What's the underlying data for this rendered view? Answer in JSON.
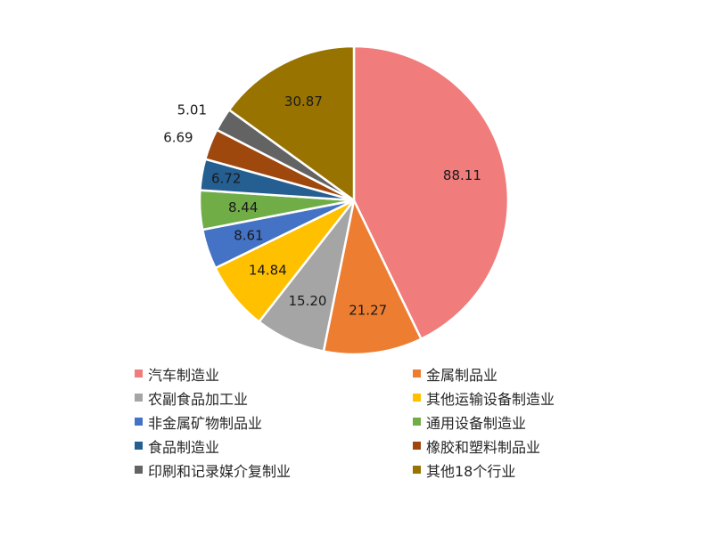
{
  "chart_data": {
    "type": "pie",
    "categories": [
      "汽车制造业",
      "金属制品业",
      "农副食品加工业",
      "其他运输设备制造业",
      "非金属矿物制品业",
      "通用设备制造业",
      "食品制造业",
      "橡胶和塑料制品业",
      "印刷和记录媒介复制业",
      "其他18个行业"
    ],
    "values": [
      88.11,
      21.27,
      15.2,
      14.84,
      8.61,
      8.44,
      6.72,
      6.69,
      5.01,
      30.87
    ],
    "value_labels": [
      "88.11",
      "21.27",
      "15.20",
      "14.84",
      "8.61",
      "8.44",
      "6.72",
      "6.69",
      "5.01",
      "30.87"
    ],
    "colors": [
      "#F07C7C",
      "#ED7D31",
      "#A5A5A5",
      "#FFC000",
      "#4472C4",
      "#70AD47",
      "#255E91",
      "#9E480E",
      "#636363",
      "#997300"
    ],
    "start_angle_deg": 0,
    "direction": "clockwise",
    "legend_position": "bottom"
  }
}
